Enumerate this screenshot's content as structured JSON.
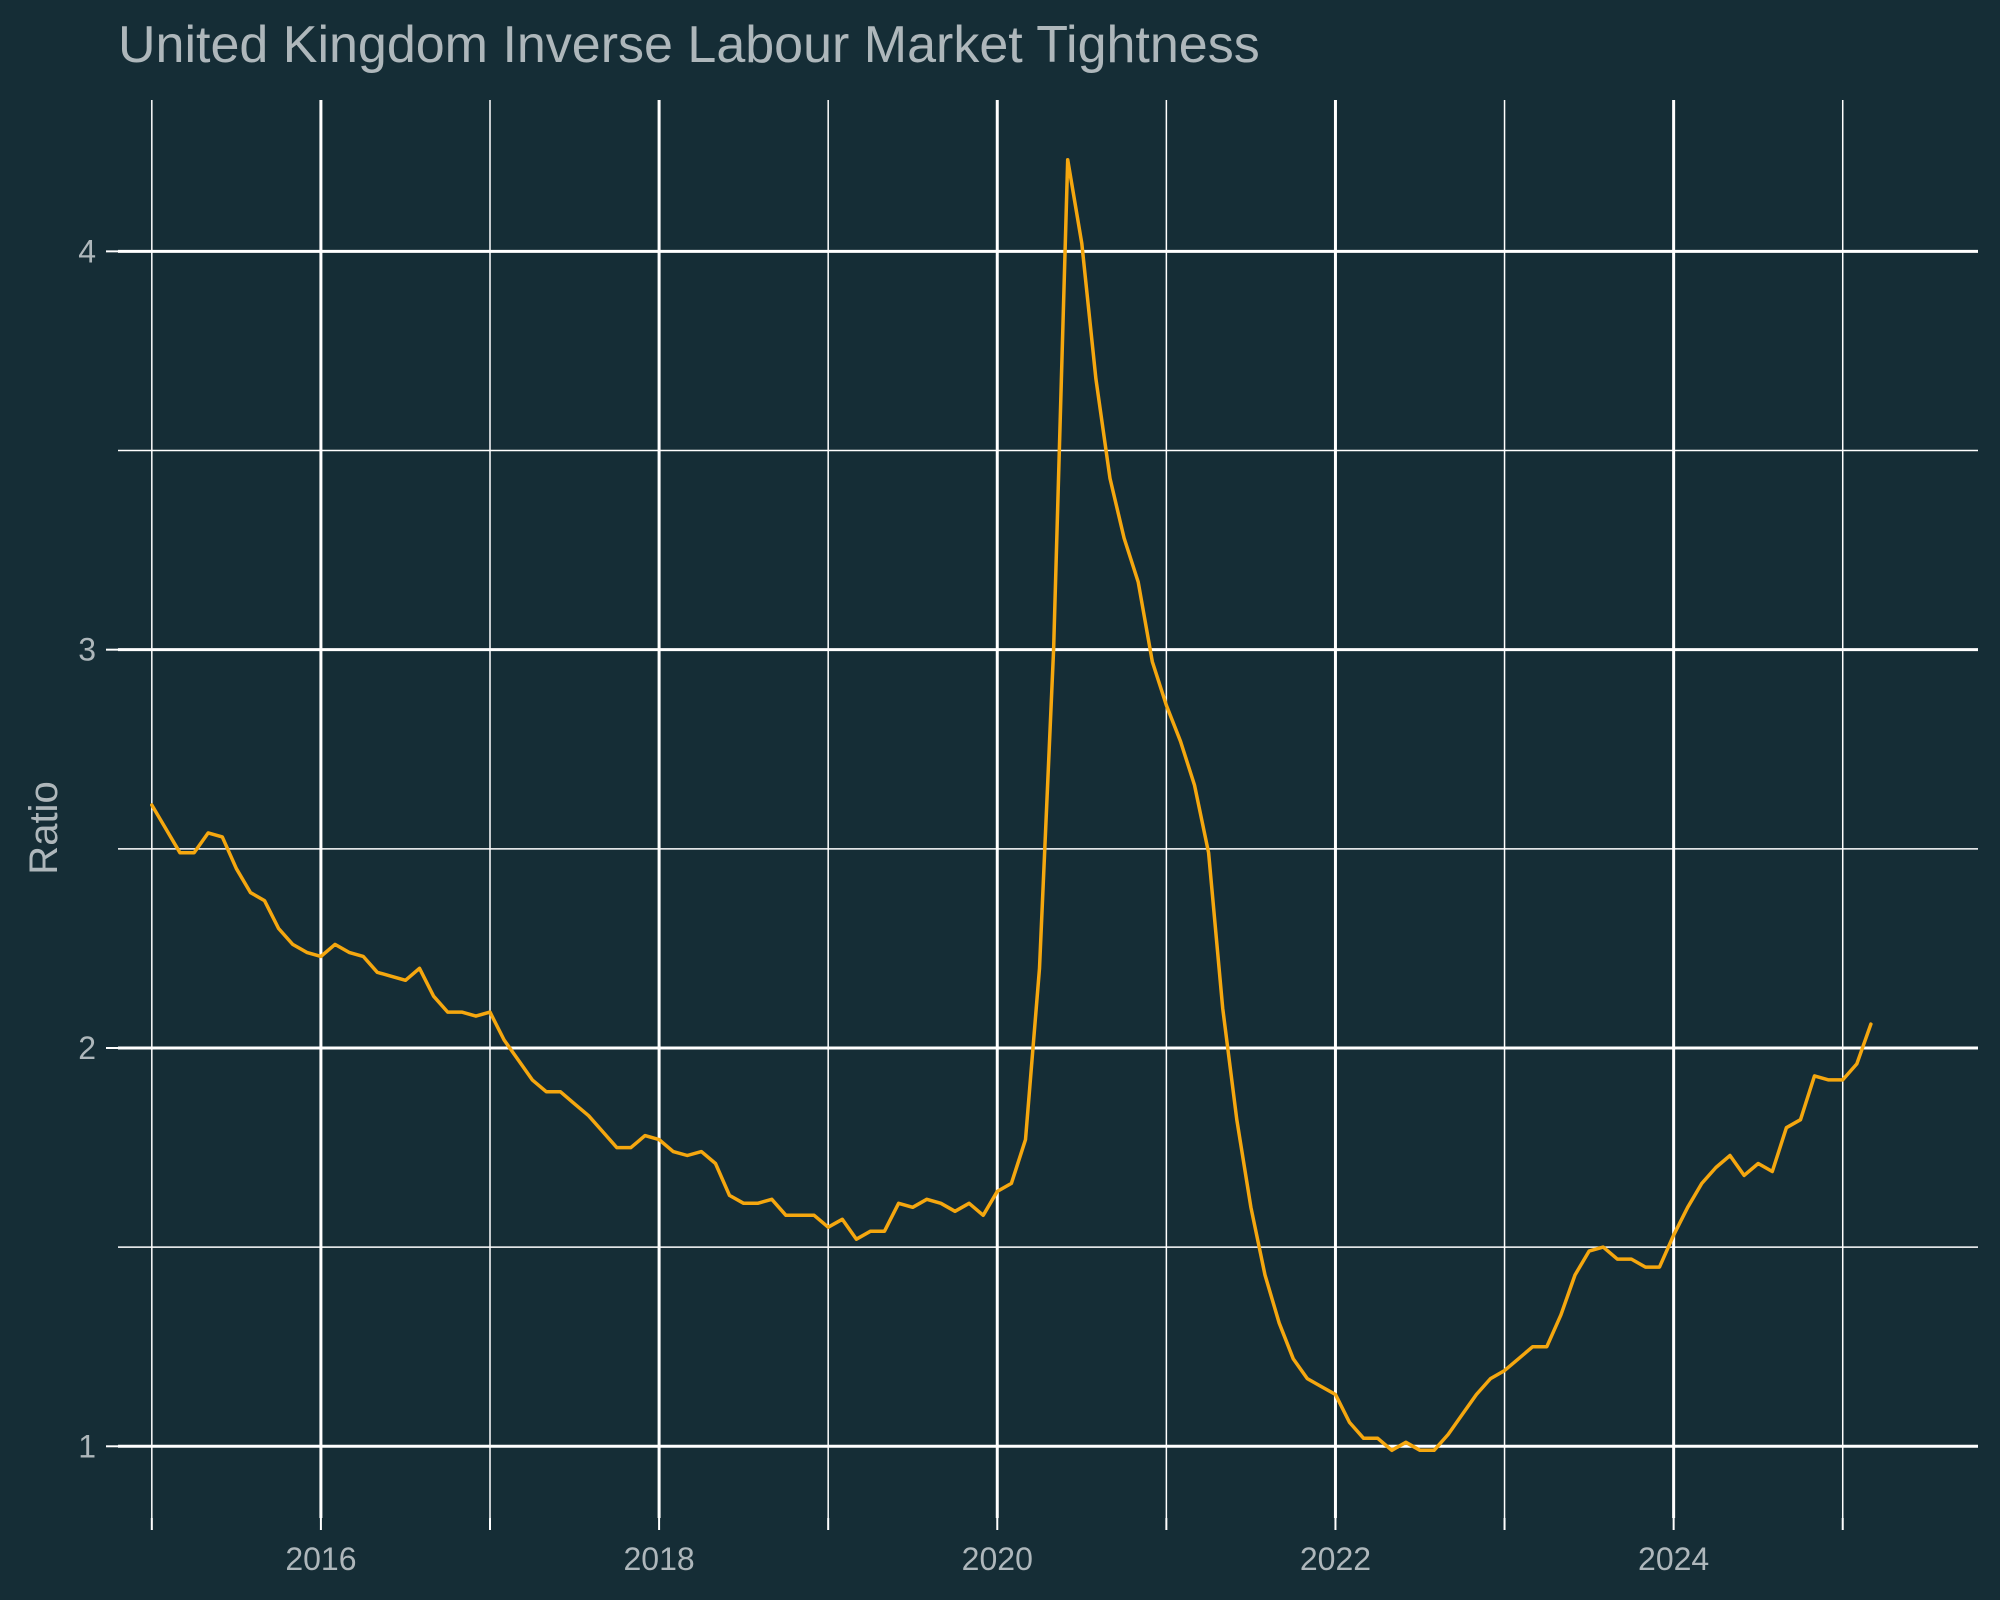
{
  "chart_data": {
    "type": "line",
    "title": "United Kingdom Inverse Labour Market Tightness",
    "xlabel": "",
    "ylabel": "Ratio",
    "x_tick_labels": [
      "2016",
      "2018",
      "2020",
      "2022",
      "2024"
    ],
    "y_tick_labels": [
      "1",
      "2",
      "3",
      "4"
    ],
    "xlim": [
      2014.8,
      2025.8
    ],
    "ylim": [
      0.82,
      4.38
    ],
    "grid": true,
    "colors": {
      "background": "#152d36",
      "line": "#f5a70f",
      "grid": "#ffffff",
      "text": "#aeb7bb"
    },
    "series": [
      {
        "x": [
          "2015-01",
          "2015-02",
          "2015-03",
          "2015-04",
          "2015-05",
          "2015-06",
          "2015-07",
          "2015-08",
          "2015-09",
          "2015-10",
          "2015-11",
          "2015-12",
          "2016-01",
          "2016-02",
          "2016-03",
          "2016-04",
          "2016-05",
          "2016-06",
          "2016-07",
          "2016-08",
          "2016-09",
          "2016-10",
          "2016-11",
          "2016-12",
          "2017-01",
          "2017-02",
          "2017-03",
          "2017-04",
          "2017-05",
          "2017-06",
          "2017-07",
          "2017-08",
          "2017-09",
          "2017-10",
          "2017-11",
          "2017-12",
          "2018-01",
          "2018-02",
          "2018-03",
          "2018-04",
          "2018-05",
          "2018-06",
          "2018-07",
          "2018-08",
          "2018-09",
          "2018-10",
          "2018-11",
          "2018-12",
          "2019-01",
          "2019-02",
          "2019-03",
          "2019-04",
          "2019-05",
          "2019-06",
          "2019-07",
          "2019-08",
          "2019-09",
          "2019-10",
          "2019-11",
          "2019-12",
          "2020-01",
          "2020-02",
          "2020-03",
          "2020-04",
          "2020-05",
          "2020-06",
          "2020-07",
          "2020-08",
          "2020-09",
          "2020-10",
          "2020-11",
          "2020-12",
          "2021-01",
          "2021-02",
          "2021-03",
          "2021-04",
          "2021-05",
          "2021-06",
          "2021-07",
          "2021-08",
          "2021-09",
          "2021-10",
          "2021-11",
          "2021-12",
          "2022-01",
          "2022-02",
          "2022-03",
          "2022-04",
          "2022-05",
          "2022-06",
          "2022-07",
          "2022-08",
          "2022-09",
          "2022-10",
          "2022-11",
          "2022-12",
          "2023-01",
          "2023-02",
          "2023-03",
          "2023-04",
          "2023-05",
          "2023-06",
          "2023-07",
          "2023-08",
          "2023-09",
          "2023-10",
          "2023-11",
          "2023-12",
          "2024-01",
          "2024-02",
          "2024-03",
          "2024-04",
          "2024-05",
          "2024-06",
          "2024-07",
          "2024-08",
          "2024-09",
          "2024-10",
          "2024-11",
          "2024-12",
          "2025-01",
          "2025-02",
          "2025-03"
        ],
        "y": [
          2.61,
          2.55,
          2.49,
          2.49,
          2.54,
          2.53,
          2.45,
          2.39,
          2.37,
          2.3,
          2.26,
          2.24,
          2.23,
          2.26,
          2.24,
          2.23,
          2.19,
          2.18,
          2.17,
          2.2,
          2.13,
          2.09,
          2.09,
          2.08,
          2.09,
          2.02,
          1.97,
          1.92,
          1.89,
          1.89,
          1.86,
          1.83,
          1.79,
          1.75,
          1.75,
          1.78,
          1.77,
          1.74,
          1.73,
          1.74,
          1.71,
          1.63,
          1.61,
          1.61,
          1.62,
          1.58,
          1.58,
          1.58,
          1.55,
          1.57,
          1.52,
          1.54,
          1.54,
          1.61,
          1.6,
          1.62,
          1.61,
          1.59,
          1.61,
          1.58,
          1.64,
          1.66,
          1.77,
          2.2,
          3.0,
          4.23,
          4.02,
          3.68,
          3.43,
          3.28,
          3.17,
          2.97,
          2.86,
          2.77,
          2.66,
          2.49,
          2.1,
          1.82,
          1.6,
          1.43,
          1.31,
          1.22,
          1.17,
          1.15,
          1.13,
          1.06,
          1.02,
          1.02,
          0.99,
          1.01,
          0.99,
          0.99,
          1.03,
          1.08,
          1.13,
          1.17,
          1.19,
          1.22,
          1.25,
          1.25,
          1.33,
          1.43,
          1.49,
          1.5,
          1.47,
          1.47,
          1.45,
          1.45,
          1.53,
          1.6,
          1.66,
          1.7,
          1.73,
          1.68,
          1.71,
          1.69,
          1.8,
          1.82,
          1.93,
          1.92,
          1.92,
          1.96,
          2.06
        ]
      }
    ]
  }
}
